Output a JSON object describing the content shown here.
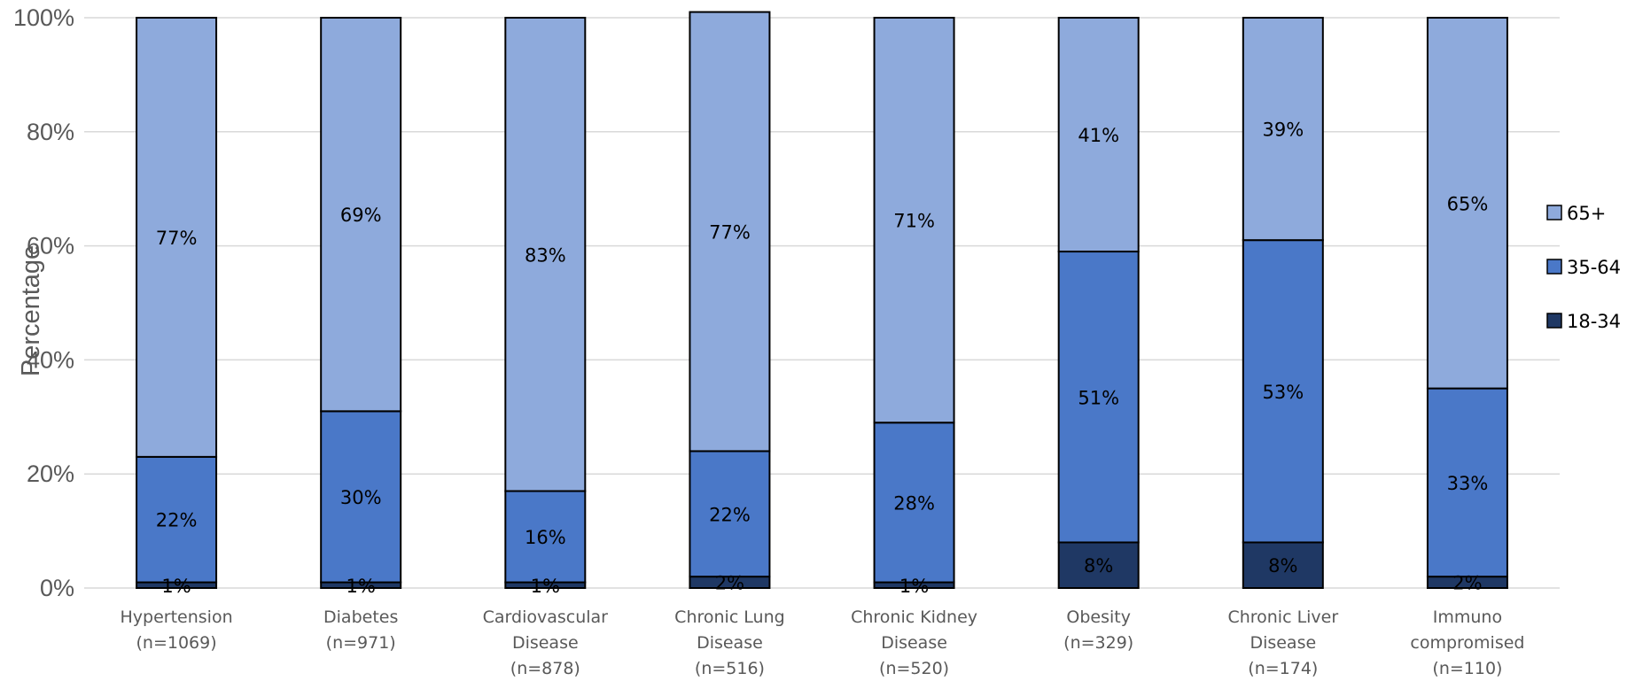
{
  "chart_data": {
    "type": "bar",
    "stacked": true,
    "ylabel": "Percentage",
    "ylim": [
      0,
      100
    ],
    "yticks": [
      "0%",
      "20%",
      "40%",
      "60%",
      "80%",
      "100%"
    ],
    "grid": true,
    "legend_position": "right",
    "categories": [
      [
        "Hypertension",
        "(n=1069)"
      ],
      [
        "Diabetes",
        "(n=971)"
      ],
      [
        "Cardiovascular",
        "Disease",
        "(n=878)"
      ],
      [
        "Chronic Lung",
        "Disease",
        "(n=516)"
      ],
      [
        "Chronic Kidney",
        "Disease",
        "(n=520)"
      ],
      [
        "Obesity",
        "(n=329)"
      ],
      [
        "Chronic Liver",
        "Disease",
        "(n=174)"
      ],
      [
        "Immuno",
        "compromised",
        "(n=110)"
      ]
    ],
    "series": [
      {
        "name": "18-34",
        "color": "#1f3864",
        "values": [
          1,
          1,
          1,
          2,
          1,
          8,
          8,
          2
        ],
        "labels": [
          "1%",
          "1%",
          "1%",
          "2%",
          "1%",
          "8%",
          "8%",
          "2%"
        ]
      },
      {
        "name": "35-64",
        "color": "#4a78c8",
        "values": [
          22,
          30,
          16,
          22,
          28,
          51,
          53,
          33
        ],
        "labels": [
          "22%",
          "30%",
          "16%",
          "22%",
          "28%",
          "51%",
          "53%",
          "33%"
        ]
      },
      {
        "name": "65+",
        "color": "#8eaadc",
        "values": [
          77,
          69,
          83,
          77,
          71,
          41,
          39,
          65
        ],
        "labels": [
          "77%",
          "69%",
          "83%",
          "77%",
          "71%",
          "41%",
          "39%",
          "65%"
        ]
      }
    ]
  }
}
